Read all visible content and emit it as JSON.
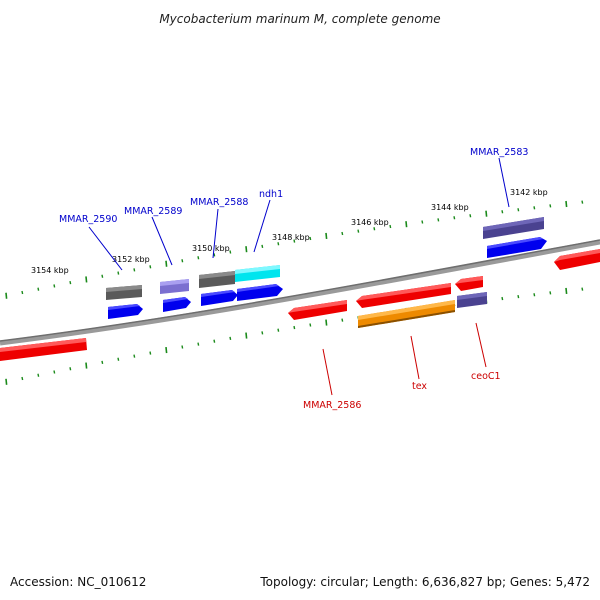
{
  "title": "Mycobacterium marinum M, complete genome",
  "footer": {
    "accession": "Accession: NC_010612",
    "summary": "Topology: circular; Length: 6,636,827 bp; Genes: 5,472"
  },
  "colors": {
    "backbone": "#808080",
    "tick": "#1a8a1a",
    "label_blue": "#0000cc",
    "label_red": "#cc0000"
  },
  "scale_labels": [
    "3154 kbp",
    "3152 kbp",
    "3150 kbp",
    "3148 kbp",
    "3146 kbp",
    "3144 kbp",
    "3142 kbp"
  ],
  "gene_labels": {
    "mmar_2590": "MMAR_2590",
    "mmar_2589": "MMAR_2589",
    "mmar_2588": "MMAR_2588",
    "ndh1": "ndh1",
    "mmar_2583": "MMAR_2583",
    "mmar_2586": "MMAR_2586",
    "tex": "tex",
    "ceoc1": "ceoC1"
  },
  "feature_colors": {
    "dark_gray": "#5a5a5a",
    "light_purple": "#7b6fd0",
    "dark_purple": "#4a4290",
    "cyan": "#00e5ee",
    "blue": "#0000ee",
    "red": "#ee0000",
    "orange": "#ee8a00"
  }
}
